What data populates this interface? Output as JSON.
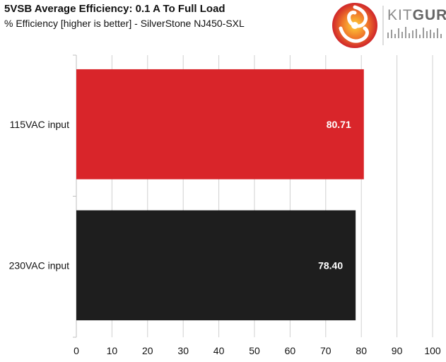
{
  "header": {
    "title": "5VSB Average Efficiency: 0.1 A To Full Load",
    "subtitle": "% Efficiency [higher is better] - SilverStone NJ450-SXL"
  },
  "logo": {
    "brand_kit": "KIT",
    "brand_guru": "GURU"
  },
  "chart_data": {
    "type": "bar",
    "orientation": "horizontal",
    "categories": [
      "115VAC input",
      "230VAC input"
    ],
    "values": [
      80.71,
      78.4
    ],
    "value_labels": [
      "80.71",
      "78.40"
    ],
    "bar_colors": [
      "#d9252a",
      "#1e1e1e"
    ],
    "xlim": [
      0,
      100
    ],
    "x_ticks": [
      "0",
      "10",
      "20",
      "30",
      "40",
      "50",
      "60",
      "70",
      "80",
      "90",
      "100"
    ],
    "grid": "vertical",
    "legend": "none"
  }
}
